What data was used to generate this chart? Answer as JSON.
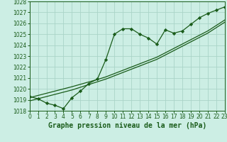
{
  "title": "Graphe pression niveau de la mer (hPa)",
  "bg_color": "#cceee4",
  "grid_color": "#aad4c8",
  "line_color": "#1a5c1a",
  "x_min": 0,
  "x_max": 23,
  "y_min": 1018,
  "y_max": 1028,
  "x_ticks": [
    0,
    1,
    2,
    3,
    4,
    5,
    6,
    7,
    8,
    9,
    10,
    11,
    12,
    13,
    14,
    15,
    16,
    17,
    18,
    19,
    20,
    21,
    22,
    23
  ],
  "y_ticks": [
    1018,
    1019,
    1020,
    1021,
    1022,
    1023,
    1024,
    1025,
    1026,
    1027,
    1028
  ],
  "wavy_x": [
    0,
    1,
    2,
    3,
    4,
    5,
    6,
    7,
    8,
    9,
    10,
    11,
    12,
    13,
    14,
    15,
    16,
    17,
    18,
    19,
    20,
    21,
    22,
    23
  ],
  "wavy_y": [
    1019.3,
    1019.1,
    1018.7,
    1018.5,
    1018.2,
    1019.2,
    1019.8,
    1020.5,
    1020.9,
    1022.7,
    1025.0,
    1025.5,
    1025.5,
    1025.0,
    1024.65,
    1024.1,
    1025.4,
    1025.1,
    1025.3,
    1025.9,
    1026.5,
    1026.9,
    1027.2,
    1027.5
  ],
  "trend1_x": [
    0,
    1,
    2,
    3,
    4,
    5,
    6,
    7,
    8,
    9,
    10,
    11,
    12,
    13,
    14,
    15,
    16,
    17,
    18,
    19,
    20,
    21,
    22,
    23
  ],
  "trend1_y": [
    1018.9,
    1019.1,
    1019.3,
    1019.5,
    1019.7,
    1019.9,
    1020.15,
    1020.4,
    1020.65,
    1020.9,
    1021.2,
    1021.5,
    1021.8,
    1022.1,
    1022.4,
    1022.7,
    1023.1,
    1023.5,
    1023.9,
    1024.3,
    1024.7,
    1025.1,
    1025.6,
    1026.1
  ],
  "trend2_x": [
    0,
    1,
    2,
    3,
    4,
    5,
    6,
    7,
    8,
    9,
    10,
    11,
    12,
    13,
    14,
    15,
    16,
    17,
    18,
    19,
    20,
    21,
    22,
    23
  ],
  "trend2_y": [
    1019.2,
    1019.4,
    1019.6,
    1019.8,
    1020.0,
    1020.2,
    1020.42,
    1020.64,
    1020.86,
    1021.1,
    1021.4,
    1021.7,
    1022.0,
    1022.3,
    1022.6,
    1022.9,
    1023.3,
    1023.7,
    1024.1,
    1024.5,
    1024.9,
    1025.3,
    1025.8,
    1026.3
  ],
  "xlabel_fontsize": 7,
  "tick_fontsize": 5.5
}
